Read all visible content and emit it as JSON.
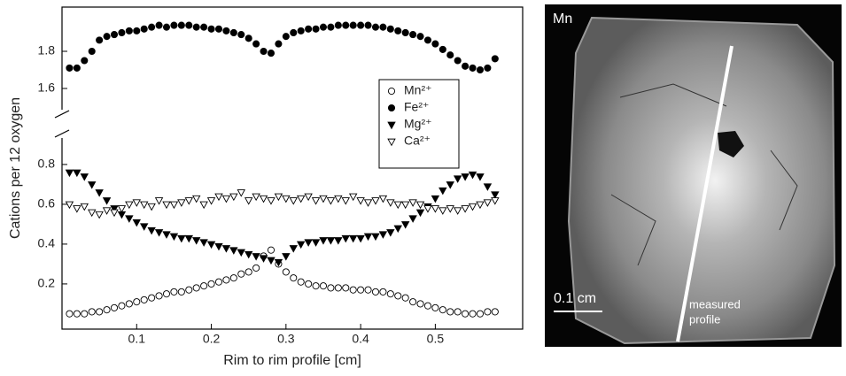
{
  "chart_data": {
    "type": "scatter",
    "xlabel": "Rim to rim profile [cm]",
    "ylabel": "Cations per 12 oxygen",
    "xlim": [
      0,
      0.617
    ],
    "xticks": [
      0.1,
      0.2,
      0.3,
      0.4,
      0.5
    ],
    "ylim": [
      -0.027,
      0.924
    ],
    "yticks": [
      0.2,
      0.4,
      0.6,
      0.8
    ],
    "ylim_upper": [
      1.5,
      2.038
    ],
    "yticks_upper": [
      1.6,
      1.8
    ],
    "legend": "right",
    "x": [
      0.01,
      0.02,
      0.03,
      0.04,
      0.05,
      0.06,
      0.07,
      0.08,
      0.09,
      0.1,
      0.11,
      0.12,
      0.13,
      0.14,
      0.15,
      0.16,
      0.17,
      0.18,
      0.19,
      0.2,
      0.21,
      0.22,
      0.23,
      0.24,
      0.25,
      0.26,
      0.27,
      0.28,
      0.29,
      0.3,
      0.31,
      0.32,
      0.33,
      0.34,
      0.35,
      0.36,
      0.37,
      0.38,
      0.39,
      0.4,
      0.41,
      0.42,
      0.43,
      0.44,
      0.45,
      0.46,
      0.47,
      0.48,
      0.49,
      0.5,
      0.51,
      0.52,
      0.53,
      0.54,
      0.55,
      0.56,
      0.57,
      0.58
    ],
    "series": [
      {
        "name": "Mn²⁺",
        "marker": "circle-open",
        "color": "#000000",
        "axis": "lower",
        "values": [
          0.05,
          0.05,
          0.05,
          0.06,
          0.06,
          0.07,
          0.08,
          0.09,
          0.1,
          0.11,
          0.12,
          0.13,
          0.14,
          0.15,
          0.16,
          0.16,
          0.17,
          0.18,
          0.19,
          0.2,
          0.21,
          0.22,
          0.23,
          0.25,
          0.26,
          0.28,
          0.34,
          0.37,
          0.3,
          0.26,
          0.23,
          0.21,
          0.2,
          0.19,
          0.19,
          0.18,
          0.18,
          0.18,
          0.17,
          0.17,
          0.17,
          0.16,
          0.16,
          0.15,
          0.14,
          0.13,
          0.11,
          0.1,
          0.09,
          0.08,
          0.07,
          0.06,
          0.06,
          0.05,
          0.05,
          0.05,
          0.06,
          0.06
        ]
      },
      {
        "name": "Fe²⁺",
        "marker": "circle-filled",
        "color": "#000000",
        "axis": "upper",
        "values": [
          1.71,
          1.71,
          1.75,
          1.8,
          1.86,
          1.88,
          1.89,
          1.9,
          1.91,
          1.91,
          1.92,
          1.93,
          1.94,
          1.93,
          1.94,
          1.94,
          1.94,
          1.93,
          1.93,
          1.92,
          1.92,
          1.91,
          1.9,
          1.89,
          1.87,
          1.84,
          1.8,
          1.79,
          1.84,
          1.88,
          1.9,
          1.91,
          1.92,
          1.92,
          1.93,
          1.93,
          1.94,
          1.94,
          1.94,
          1.94,
          1.94,
          1.93,
          1.93,
          1.92,
          1.91,
          1.9,
          1.89,
          1.88,
          1.86,
          1.84,
          1.81,
          1.78,
          1.75,
          1.72,
          1.71,
          1.7,
          1.71,
          1.76
        ]
      },
      {
        "name": "Mg²⁺",
        "marker": "triangle-filled",
        "color": "#000000",
        "axis": "lower",
        "values": [
          0.76,
          0.76,
          0.74,
          0.7,
          0.66,
          0.62,
          0.58,
          0.55,
          0.53,
          0.51,
          0.49,
          0.47,
          0.46,
          0.45,
          0.44,
          0.43,
          0.43,
          0.42,
          0.41,
          0.4,
          0.39,
          0.38,
          0.37,
          0.36,
          0.35,
          0.34,
          0.33,
          0.32,
          0.31,
          0.34,
          0.38,
          0.4,
          0.41,
          0.41,
          0.42,
          0.42,
          0.42,
          0.43,
          0.43,
          0.43,
          0.44,
          0.44,
          0.45,
          0.46,
          0.48,
          0.5,
          0.53,
          0.56,
          0.59,
          0.63,
          0.67,
          0.7,
          0.73,
          0.74,
          0.75,
          0.74,
          0.69,
          0.65
        ]
      },
      {
        "name": "Ca²⁺",
        "marker": "triangle-open",
        "color": "#000000",
        "axis": "lower",
        "values": [
          0.6,
          0.58,
          0.59,
          0.56,
          0.55,
          0.57,
          0.56,
          0.58,
          0.6,
          0.61,
          0.6,
          0.59,
          0.62,
          0.6,
          0.6,
          0.61,
          0.62,
          0.63,
          0.6,
          0.62,
          0.64,
          0.63,
          0.64,
          0.66,
          0.62,
          0.64,
          0.63,
          0.62,
          0.64,
          0.63,
          0.62,
          0.63,
          0.64,
          0.62,
          0.63,
          0.62,
          0.63,
          0.62,
          0.64,
          0.62,
          0.61,
          0.62,
          0.63,
          0.61,
          0.6,
          0.6,
          0.61,
          0.6,
          0.58,
          0.58,
          0.57,
          0.58,
          0.57,
          0.58,
          0.59,
          0.6,
          0.61,
          0.62
        ]
      }
    ]
  },
  "image_panel": {
    "label": "Mn",
    "annotation_lines": [
      "measured",
      "profile"
    ],
    "scale_bar": "0.1 cm"
  }
}
